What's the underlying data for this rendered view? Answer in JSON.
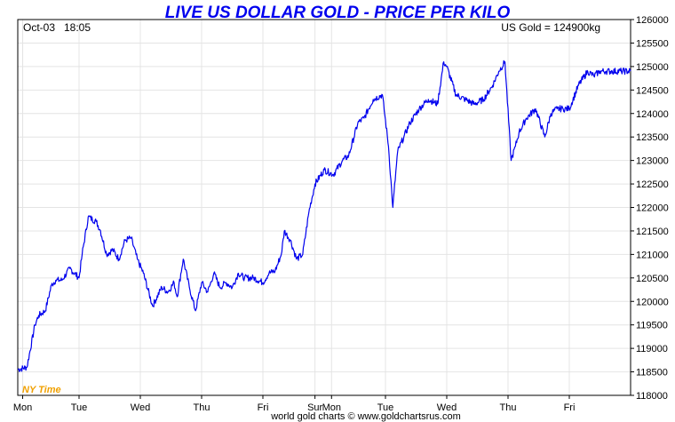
{
  "chart_data": {
    "type": "line",
    "title": "LIVE US DOLLAR GOLD - PRICE PER KILO",
    "date_label": "Oct-03",
    "time_label": "18:05",
    "current_label": "US Gold = 124900kg",
    "timezone_label": "NY Time",
    "footer": "world gold charts © www.goldchartsrus.com",
    "title_color": "#0000ee",
    "line_color": "#0000ee",
    "timezone_color": "#f0a000",
    "grid": true,
    "ylim": [
      118000,
      126000
    ],
    "yticks": [
      118000,
      118500,
      119000,
      119500,
      120000,
      120500,
      121000,
      121500,
      122000,
      122500,
      123000,
      123500,
      124000,
      124500,
      125000,
      125500,
      126000
    ],
    "xlim": [
      0,
      10
    ],
    "x_ticks": [
      {
        "x": 0.08,
        "label": "Mon"
      },
      {
        "x": 1.0,
        "label": "Tue"
      },
      {
        "x": 2.0,
        "label": "Wed"
      },
      {
        "x": 3.0,
        "label": "Thu"
      },
      {
        "x": 4.0,
        "label": "Fri"
      },
      {
        "x": 4.85,
        "label": "Sur"
      },
      {
        "x": 5.12,
        "label": "Mon"
      },
      {
        "x": 6.0,
        "label": "Tue"
      },
      {
        "x": 7.0,
        "label": "Wed"
      },
      {
        "x": 8.0,
        "label": "Thu"
      },
      {
        "x": 9.0,
        "label": "Fri"
      }
    ],
    "series": [
      {
        "x": [
          0.0,
          0.15,
          0.28,
          0.34,
          0.45,
          0.55,
          0.62,
          0.72,
          0.85,
          1.0,
          1.05,
          1.15,
          1.28,
          1.35,
          1.45,
          1.55,
          1.65,
          1.75,
          1.85,
          1.95,
          2.05,
          2.2,
          2.35,
          2.45,
          2.55,
          2.6,
          2.7,
          2.8,
          2.9,
          3.0,
          3.1,
          3.2,
          3.3,
          3.4,
          3.5,
          3.6,
          3.7,
          3.85,
          4.0,
          4.1,
          4.2,
          4.3,
          4.35,
          4.45,
          4.55,
          4.65,
          4.75,
          4.85,
          5.0,
          5.15,
          5.3,
          5.4,
          5.55,
          5.65,
          5.8,
          5.95,
          6.05,
          6.12,
          6.2,
          6.3,
          6.4,
          6.55,
          6.7,
          6.85,
          6.95,
          7.0,
          7.15,
          7.3,
          7.45,
          7.6,
          7.75,
          7.85,
          7.95,
          8.05,
          8.12,
          8.18,
          8.3,
          8.45,
          8.6,
          8.7,
          8.8,
          8.9,
          9.0,
          9.15,
          9.3,
          9.4,
          9.5,
          9.6,
          9.7,
          9.85,
          10.0
        ],
        "y": [
          118550,
          118600,
          119500,
          119700,
          119800,
          120350,
          120450,
          120450,
          120700,
          120500,
          121000,
          121800,
          121700,
          121500,
          121000,
          121100,
          120900,
          121300,
          121350,
          120900,
          120600,
          119900,
          120300,
          120200,
          120400,
          120100,
          120900,
          120300,
          119800,
          120400,
          120200,
          120600,
          120300,
          120400,
          120300,
          120600,
          120500,
          120500,
          120400,
          120600,
          120650,
          121000,
          121500,
          121300,
          120900,
          121000,
          121900,
          122500,
          122800,
          122700,
          123000,
          123100,
          123800,
          123900,
          124300,
          124400,
          123300,
          122000,
          123200,
          123500,
          123800,
          124100,
          124300,
          124200,
          125100,
          125000,
          124400,
          124300,
          124200,
          124300,
          124600,
          124900,
          125100,
          123000,
          123300,
          123600,
          123900,
          124100,
          123500,
          124000,
          124100,
          124100,
          124100,
          124600,
          124900,
          124800,
          124900,
          124900,
          124900,
          124900,
          124900
        ]
      }
    ]
  }
}
